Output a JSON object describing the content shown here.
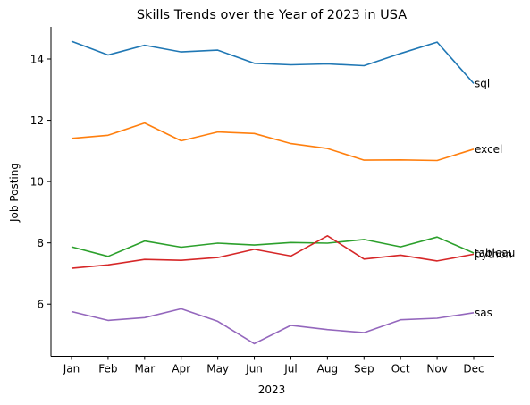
{
  "chart_data": {
    "type": "line",
    "title": "Skills Trends over the Year of 2023 in USA",
    "xlabel": "2023",
    "ylabel": "Job Posting",
    "categories": [
      "Jan",
      "Feb",
      "Mar",
      "Apr",
      "May",
      "Jun",
      "Jul",
      "Aug",
      "Sep",
      "Oct",
      "Nov",
      "Dec"
    ],
    "yticks": [
      "6",
      "8",
      "10",
      "12",
      "14"
    ],
    "ylim": [
      4.3,
      15.05
    ],
    "grid": false,
    "series": [
      {
        "name": "sql",
        "color": "#1f77b4",
        "values": [
          14.58,
          14.13,
          14.45,
          14.23,
          14.29,
          13.86,
          13.81,
          13.84,
          13.78,
          14.18,
          14.55,
          13.2
        ]
      },
      {
        "name": "excel",
        "color": "#ff7f0e",
        "values": [
          11.41,
          11.51,
          11.91,
          11.33,
          11.62,
          11.57,
          11.24,
          11.08,
          10.7,
          10.71,
          10.69,
          11.06
        ]
      },
      {
        "name": "tableau",
        "color": "#2ca02c",
        "values": [
          7.87,
          7.56,
          8.06,
          7.86,
          7.99,
          7.93,
          8.01,
          7.99,
          8.11,
          7.87,
          8.19,
          7.67
        ]
      },
      {
        "name": "python",
        "color": "#d62728",
        "values": [
          7.17,
          7.28,
          7.46,
          7.43,
          7.52,
          7.79,
          7.57,
          8.23,
          7.47,
          7.6,
          7.41,
          7.63
        ]
      },
      {
        "name": "sas",
        "color": "#9467bd",
        "values": [
          5.76,
          5.47,
          5.56,
          5.85,
          5.44,
          4.71,
          5.31,
          5.17,
          5.07,
          5.49,
          5.54,
          5.72
        ]
      }
    ]
  }
}
